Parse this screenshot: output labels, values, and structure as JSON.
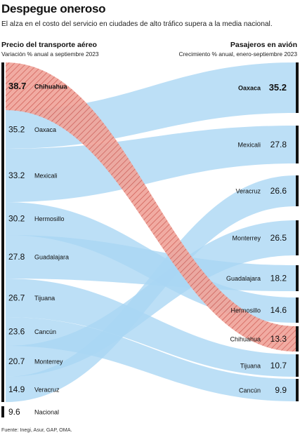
{
  "title": "Despegue oneroso",
  "subtitle": "El alza en el costo del servicio en ciudades de alto tráfico supera a la media nacional.",
  "left_header": "Precio del transporte aéreo",
  "left_subheader": "Variación % anual a septiembre 2023",
  "right_header": "Pasajeros en avión",
  "right_subheader": "Crecimiento % anual, enero-septiembre 2023",
  "source": "Fuente: Inegi, Asur, GAP, OMA.",
  "colors": {
    "flow": "#a9d6f3",
    "highlight": "#f0a49a",
    "highlight_hatch": "#c7473e",
    "bar": "#111111"
  },
  "chart_data": {
    "type": "slope",
    "highlight": "Chihuahua",
    "left": [
      {
        "city": "Chihuahua",
        "value": "38.7"
      },
      {
        "city": "Oaxaca",
        "value": "35.2"
      },
      {
        "city": "Mexicali",
        "value": "33.2"
      },
      {
        "city": "Hermosillo",
        "value": "30.2"
      },
      {
        "city": "Guadalajara",
        "value": "27.8"
      },
      {
        "city": "Tijuana",
        "value": "26.7"
      },
      {
        "city": "Cancún",
        "value": "23.6"
      },
      {
        "city": "Monterrey",
        "value": "20.7"
      },
      {
        "city": "Veracruz",
        "value": "14.9"
      },
      {
        "city": "Nacional",
        "value": "9.6"
      }
    ],
    "right": [
      {
        "city": "Oaxaca",
        "value": "35.2"
      },
      {
        "city": "Mexicali",
        "value": "27.8"
      },
      {
        "city": "Veracruz",
        "value": "26.6"
      },
      {
        "city": "Monterrey",
        "value": "26.5"
      },
      {
        "city": "Guadalajara",
        "value": "18.2"
      },
      {
        "city": "Hermosillo",
        "value": "14.6"
      },
      {
        "city": "Chihuahua",
        "value": "13.3"
      },
      {
        "city": "Tijuana",
        "value": "10.7"
      },
      {
        "city": "Cancún",
        "value": "9.9"
      }
    ]
  }
}
